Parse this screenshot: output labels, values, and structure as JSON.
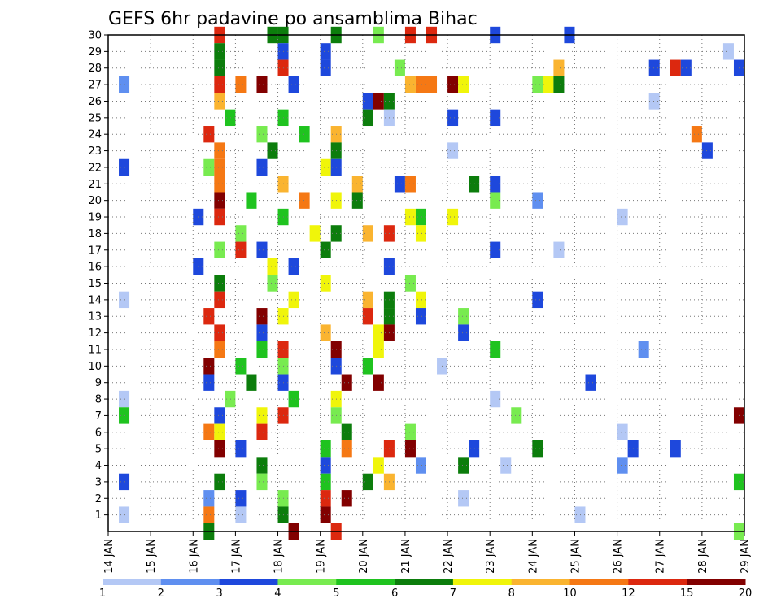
{
  "chart_data": {
    "type": "heatmap",
    "title": "GEFS 6hr padavine po ansamblima Bihac",
    "xlabel": "",
    "ylabel": "",
    "x_tick_labels": [
      "14 JAN",
      "15 JAN",
      "16 JAN",
      "17 JAN",
      "18 JAN",
      "19 JAN",
      "20 JAN",
      "21 JAN",
      "22 JAN",
      "23 JAN",
      "24 JAN",
      "25 JAN",
      "26 JAN",
      "27 JAN",
      "28 JAN",
      "29 JAN"
    ],
    "y_tick_labels": [
      "1",
      "2",
      "3",
      "4",
      "5",
      "6",
      "7",
      "8",
      "9",
      "10",
      "11",
      "12",
      "13",
      "14",
      "15",
      "16",
      "17",
      "18",
      "19",
      "20",
      "21",
      "22",
      "23",
      "24",
      "25",
      "26",
      "27",
      "28",
      "29",
      "30"
    ],
    "xlim": [
      "14 JAN 00Z",
      "29 JAN 00Z"
    ],
    "ylim": [
      0,
      30
    ],
    "time_step_hours": 6,
    "grid": true,
    "colorbar": {
      "labels": [
        "1",
        "2",
        "3",
        "4",
        "5",
        "6",
        "7",
        "8",
        "10",
        "12",
        "15",
        "20"
      ],
      "colors": [
        "#b4c8f5",
        "#5f8ff0",
        "#1e48dc",
        "#78eb50",
        "#1fc31f",
        "#0c7d0c",
        "#f0f50a",
        "#fab430",
        "#f57814",
        "#dc280f",
        "#820000"
      ]
    },
    "legend": "colorbar-bottom",
    "cells": [
      {
        "member": 30,
        "x": "16 JAN 12Z",
        "level": 9
      },
      {
        "member": 30,
        "x": "17 JAN 18Z",
        "level": 5
      },
      {
        "member": 30,
        "x": "18 JAN 00Z",
        "level": 5
      },
      {
        "member": 30,
        "x": "19 JAN 06Z",
        "level": 5
      },
      {
        "member": 30,
        "x": "20 JAN 06Z",
        "level": 3
      },
      {
        "member": 30,
        "x": "21 JAN 00Z",
        "level": 9
      },
      {
        "member": 30,
        "x": "21 JAN 12Z",
        "level": 9
      },
      {
        "member": 30,
        "x": "23 JAN 00Z",
        "level": 2
      },
      {
        "member": 30,
        "x": "24 JAN 18Z",
        "level": 2
      },
      {
        "member": 29,
        "x": "16 JAN 12Z",
        "level": 5
      },
      {
        "member": 29,
        "x": "18 JAN 00Z",
        "level": 2
      },
      {
        "member": 29,
        "x": "19 JAN 00Z",
        "level": 2
      },
      {
        "member": 29,
        "x": "28 JAN 12Z",
        "level": 0
      },
      {
        "member": 28,
        "x": "16 JAN 12Z",
        "level": 5
      },
      {
        "member": 28,
        "x": "18 JAN 00Z",
        "level": 9
      },
      {
        "member": 28,
        "x": "19 JAN 00Z",
        "level": 2
      },
      {
        "member": 28,
        "x": "20 JAN 18Z",
        "level": 3
      },
      {
        "member": 28,
        "x": "24 JAN 12Z",
        "level": 7
      },
      {
        "member": 28,
        "x": "26 JAN 18Z",
        "level": 2
      },
      {
        "member": 28,
        "x": "27 JAN 06Z",
        "level": 9
      },
      {
        "member": 28,
        "x": "27 JAN 12Z",
        "level": 2
      },
      {
        "member": 28,
        "x": "28 JAN 18Z",
        "level": 2
      },
      {
        "member": 27,
        "x": "14 JAN 06Z",
        "level": 1
      },
      {
        "member": 27,
        "x": "16 JAN 12Z",
        "level": 9
      },
      {
        "member": 27,
        "x": "17 JAN 00Z",
        "level": 8
      },
      {
        "member": 27,
        "x": "17 JAN 12Z",
        "level": 10
      },
      {
        "member": 27,
        "x": "18 JAN 06Z",
        "level": 2
      },
      {
        "member": 27,
        "x": "21 JAN 00Z",
        "level": 7
      },
      {
        "member": 27,
        "x": "21 JAN 06Z",
        "level": 8
      },
      {
        "member": 27,
        "x": "21 JAN 12Z",
        "level": 8
      },
      {
        "member": 27,
        "x": "22 JAN 00Z",
        "level": 10
      },
      {
        "member": 27,
        "x": "22 JAN 06Z",
        "level": 6
      },
      {
        "member": 27,
        "x": "24 JAN 00Z",
        "level": 3
      },
      {
        "member": 27,
        "x": "24 JAN 06Z",
        "level": 6
      },
      {
        "member": 27,
        "x": "24 JAN 12Z",
        "level": 5
      },
      {
        "member": 26,
        "x": "16 JAN 12Z",
        "level": 7
      },
      {
        "member": 26,
        "x": "20 JAN 00Z",
        "level": 2
      },
      {
        "member": 26,
        "x": "20 JAN 06Z",
        "level": 10
      },
      {
        "member": 26,
        "x": "20 JAN 12Z",
        "level": 5
      },
      {
        "member": 26,
        "x": "26 JAN 18Z",
        "level": 0
      },
      {
        "member": 25,
        "x": "16 JAN 18Z",
        "level": 4
      },
      {
        "member": 25,
        "x": "18 JAN 00Z",
        "level": 4
      },
      {
        "member": 25,
        "x": "20 JAN 00Z",
        "level": 5
      },
      {
        "member": 25,
        "x": "20 JAN 12Z",
        "level": 0
      },
      {
        "member": 25,
        "x": "22 JAN 00Z",
        "level": 2
      },
      {
        "member": 25,
        "x": "23 JAN 00Z",
        "level": 2
      },
      {
        "member": 24,
        "x": "16 JAN 06Z",
        "level": 9
      },
      {
        "member": 24,
        "x": "17 JAN 12Z",
        "level": 3
      },
      {
        "member": 24,
        "x": "18 JAN 12Z",
        "level": 4
      },
      {
        "member": 24,
        "x": "19 JAN 06Z",
        "level": 7
      },
      {
        "member": 24,
        "x": "27 JAN 18Z",
        "level": 8
      },
      {
        "member": 23,
        "x": "16 JAN 12Z",
        "level": 8
      },
      {
        "member": 23,
        "x": "17 JAN 18Z",
        "level": 5
      },
      {
        "member": 23,
        "x": "19 JAN 06Z",
        "level": 5
      },
      {
        "member": 23,
        "x": "22 JAN 00Z",
        "level": 0
      },
      {
        "member": 23,
        "x": "28 JAN 00Z",
        "level": 2
      },
      {
        "member": 22,
        "x": "14 JAN 06Z",
        "level": 2
      },
      {
        "member": 22,
        "x": "16 JAN 06Z",
        "level": 3
      },
      {
        "member": 22,
        "x": "16 JAN 12Z",
        "level": 8
      },
      {
        "member": 22,
        "x": "17 JAN 12Z",
        "level": 2
      },
      {
        "member": 22,
        "x": "19 JAN 00Z",
        "level": 6
      },
      {
        "member": 22,
        "x": "19 JAN 06Z",
        "level": 2
      },
      {
        "member": 21,
        "x": "16 JAN 12Z",
        "level": 8
      },
      {
        "member": 21,
        "x": "18 JAN 00Z",
        "level": 7
      },
      {
        "member": 21,
        "x": "19 JAN 18Z",
        "level": 7
      },
      {
        "member": 21,
        "x": "20 JAN 18Z",
        "level": 2
      },
      {
        "member": 21,
        "x": "21 JAN 00Z",
        "level": 8
      },
      {
        "member": 21,
        "x": "22 JAN 12Z",
        "level": 5
      },
      {
        "member": 21,
        "x": "23 JAN 00Z",
        "level": 2
      },
      {
        "member": 20,
        "x": "16 JAN 12Z",
        "level": 10
      },
      {
        "member": 20,
        "x": "17 JAN 06Z",
        "level": 4
      },
      {
        "member": 20,
        "x": "18 JAN 12Z",
        "level": 8
      },
      {
        "member": 20,
        "x": "19 JAN 06Z",
        "level": 6
      },
      {
        "member": 20,
        "x": "19 JAN 18Z",
        "level": 5
      },
      {
        "member": 20,
        "x": "23 JAN 00Z",
        "level": 3
      },
      {
        "member": 20,
        "x": "24 JAN 00Z",
        "level": 1
      },
      {
        "member": 19,
        "x": "16 JAN 00Z",
        "level": 2
      },
      {
        "member": 19,
        "x": "16 JAN 12Z",
        "level": 9
      },
      {
        "member": 19,
        "x": "18 JAN 00Z",
        "level": 4
      },
      {
        "member": 19,
        "x": "21 JAN 00Z",
        "level": 6
      },
      {
        "member": 19,
        "x": "21 JAN 06Z",
        "level": 4
      },
      {
        "member": 19,
        "x": "22 JAN 00Z",
        "level": 6
      },
      {
        "member": 19,
        "x": "26 JAN 00Z",
        "level": 0
      },
      {
        "member": 18,
        "x": "17 JAN 00Z",
        "level": 3
      },
      {
        "member": 18,
        "x": "18 JAN 18Z",
        "level": 6
      },
      {
        "member": 18,
        "x": "19 JAN 06Z",
        "level": 5
      },
      {
        "member": 18,
        "x": "20 JAN 00Z",
        "level": 7
      },
      {
        "member": 18,
        "x": "20 JAN 12Z",
        "level": 9
      },
      {
        "member": 18,
        "x": "21 JAN 06Z",
        "level": 6
      },
      {
        "member": 17,
        "x": "16 JAN 12Z",
        "level": 3
      },
      {
        "member": 17,
        "x": "17 JAN 00Z",
        "level": 9
      },
      {
        "member": 17,
        "x": "17 JAN 12Z",
        "level": 2
      },
      {
        "member": 17,
        "x": "19 JAN 00Z",
        "level": 5
      },
      {
        "member": 17,
        "x": "23 JAN 00Z",
        "level": 2
      },
      {
        "member": 17,
        "x": "24 JAN 12Z",
        "level": 0
      },
      {
        "member": 16,
        "x": "16 JAN 00Z",
        "level": 2
      },
      {
        "member": 16,
        "x": "17 JAN 18Z",
        "level": 6
      },
      {
        "member": 16,
        "x": "18 JAN 06Z",
        "level": 2
      },
      {
        "member": 16,
        "x": "20 JAN 12Z",
        "level": 2
      },
      {
        "member": 15,
        "x": "16 JAN 12Z",
        "level": 5
      },
      {
        "member": 15,
        "x": "17 JAN 18Z",
        "level": 3
      },
      {
        "member": 15,
        "x": "19 JAN 00Z",
        "level": 6
      },
      {
        "member": 15,
        "x": "21 JAN 00Z",
        "level": 3
      },
      {
        "member": 14,
        "x": "14 JAN 06Z",
        "level": 0
      },
      {
        "member": 14,
        "x": "16 JAN 12Z",
        "level": 9
      },
      {
        "member": 14,
        "x": "18 JAN 06Z",
        "level": 6
      },
      {
        "member": 14,
        "x": "20 JAN 00Z",
        "level": 7
      },
      {
        "member": 14,
        "x": "20 JAN 12Z",
        "level": 5
      },
      {
        "member": 14,
        "x": "21 JAN 06Z",
        "level": 6
      },
      {
        "member": 14,
        "x": "24 JAN 00Z",
        "level": 2
      },
      {
        "member": 13,
        "x": "16 JAN 06Z",
        "level": 9
      },
      {
        "member": 13,
        "x": "17 JAN 12Z",
        "level": 10
      },
      {
        "member": 13,
        "x": "18 JAN 00Z",
        "level": 6
      },
      {
        "member": 13,
        "x": "20 JAN 00Z",
        "level": 9
      },
      {
        "member": 13,
        "x": "20 JAN 12Z",
        "level": 5
      },
      {
        "member": 13,
        "x": "21 JAN 06Z",
        "level": 2
      },
      {
        "member": 13,
        "x": "22 JAN 06Z",
        "level": 3
      },
      {
        "member": 12,
        "x": "16 JAN 12Z",
        "level": 9
      },
      {
        "member": 12,
        "x": "17 JAN 12Z",
        "level": 2
      },
      {
        "member": 12,
        "x": "19 JAN 00Z",
        "level": 7
      },
      {
        "member": 12,
        "x": "20 JAN 06Z",
        "level": 6
      },
      {
        "member": 12,
        "x": "20 JAN 12Z",
        "level": 10
      },
      {
        "member": 12,
        "x": "22 JAN 06Z",
        "level": 2
      },
      {
        "member": 11,
        "x": "16 JAN 12Z",
        "level": 8
      },
      {
        "member": 11,
        "x": "17 JAN 12Z",
        "level": 4
      },
      {
        "member": 11,
        "x": "18 JAN 00Z",
        "level": 9
      },
      {
        "member": 11,
        "x": "19 JAN 06Z",
        "level": 10
      },
      {
        "member": 11,
        "x": "20 JAN 06Z",
        "level": 6
      },
      {
        "member": 11,
        "x": "23 JAN 00Z",
        "level": 4
      },
      {
        "member": 11,
        "x": "26 JAN 12Z",
        "level": 1
      },
      {
        "member": 10,
        "x": "16 JAN 06Z",
        "level": 10
      },
      {
        "member": 10,
        "x": "17 JAN 00Z",
        "level": 4
      },
      {
        "member": 10,
        "x": "18 JAN 00Z",
        "level": 3
      },
      {
        "member": 10,
        "x": "19 JAN 06Z",
        "level": 2
      },
      {
        "member": 10,
        "x": "20 JAN 00Z",
        "level": 4
      },
      {
        "member": 10,
        "x": "21 JAN 18Z",
        "level": 0
      },
      {
        "member": 9,
        "x": "16 JAN 06Z",
        "level": 2
      },
      {
        "member": 9,
        "x": "17 JAN 06Z",
        "level": 5
      },
      {
        "member": 9,
        "x": "18 JAN 00Z",
        "level": 2
      },
      {
        "member": 9,
        "x": "19 JAN 12Z",
        "level": 10
      },
      {
        "member": 9,
        "x": "20 JAN 06Z",
        "level": 10
      },
      {
        "member": 9,
        "x": "25 JAN 06Z",
        "level": 2
      },
      {
        "member": 8,
        "x": "14 JAN 06Z",
        "level": 0
      },
      {
        "member": 8,
        "x": "16 JAN 18Z",
        "level": 3
      },
      {
        "member": 8,
        "x": "18 JAN 06Z",
        "level": 4
      },
      {
        "member": 8,
        "x": "19 JAN 06Z",
        "level": 6
      },
      {
        "member": 8,
        "x": "23 JAN 00Z",
        "level": 0
      },
      {
        "member": 7,
        "x": "14 JAN 06Z",
        "level": 4
      },
      {
        "member": 7,
        "x": "16 JAN 12Z",
        "level": 2
      },
      {
        "member": 7,
        "x": "17 JAN 12Z",
        "level": 6
      },
      {
        "member": 7,
        "x": "18 JAN 00Z",
        "level": 9
      },
      {
        "member": 7,
        "x": "19 JAN 06Z",
        "level": 3
      },
      {
        "member": 7,
        "x": "23 JAN 12Z",
        "level": 3
      },
      {
        "member": 7,
        "x": "28 JAN 18Z",
        "level": 10
      },
      {
        "member": 6,
        "x": "16 JAN 06Z",
        "level": 8
      },
      {
        "member": 6,
        "x": "16 JAN 12Z",
        "level": 6
      },
      {
        "member": 6,
        "x": "17 JAN 12Z",
        "level": 9
      },
      {
        "member": 6,
        "x": "19 JAN 12Z",
        "level": 5
      },
      {
        "member": 6,
        "x": "21 JAN 00Z",
        "level": 3
      },
      {
        "member": 6,
        "x": "26 JAN 00Z",
        "level": 0
      },
      {
        "member": 5,
        "x": "16 JAN 12Z",
        "level": 10
      },
      {
        "member": 5,
        "x": "17 JAN 00Z",
        "level": 2
      },
      {
        "member": 5,
        "x": "19 JAN 00Z",
        "level": 4
      },
      {
        "member": 5,
        "x": "19 JAN 12Z",
        "level": 8
      },
      {
        "member": 5,
        "x": "20 JAN 12Z",
        "level": 9
      },
      {
        "member": 5,
        "x": "21 JAN 00Z",
        "level": 10
      },
      {
        "member": 5,
        "x": "22 JAN 12Z",
        "level": 2
      },
      {
        "member": 5,
        "x": "24 JAN 00Z",
        "level": 5
      },
      {
        "member": 5,
        "x": "26 JAN 06Z",
        "level": 2
      },
      {
        "member": 5,
        "x": "27 JAN 06Z",
        "level": 2
      },
      {
        "member": 4,
        "x": "17 JAN 12Z",
        "level": 5
      },
      {
        "member": 4,
        "x": "19 JAN 00Z",
        "level": 2
      },
      {
        "member": 4,
        "x": "20 JAN 06Z",
        "level": 6
      },
      {
        "member": 4,
        "x": "21 JAN 06Z",
        "level": 1
      },
      {
        "member": 4,
        "x": "22 JAN 06Z",
        "level": 5
      },
      {
        "member": 4,
        "x": "23 JAN 06Z",
        "level": 0
      },
      {
        "member": 4,
        "x": "26 JAN 00Z",
        "level": 1
      },
      {
        "member": 3,
        "x": "14 JAN 06Z",
        "level": 2
      },
      {
        "member": 3,
        "x": "16 JAN 12Z",
        "level": 5
      },
      {
        "member": 3,
        "x": "17 JAN 12Z",
        "level": 3
      },
      {
        "member": 3,
        "x": "19 JAN 00Z",
        "level": 4
      },
      {
        "member": 3,
        "x": "20 JAN 00Z",
        "level": 5
      },
      {
        "member": 3,
        "x": "20 JAN 12Z",
        "level": 7
      },
      {
        "member": 3,
        "x": "28 JAN 18Z",
        "level": 4
      },
      {
        "member": 2,
        "x": "16 JAN 06Z",
        "level": 1
      },
      {
        "member": 2,
        "x": "17 JAN 00Z",
        "level": 2
      },
      {
        "member": 2,
        "x": "18 JAN 00Z",
        "level": 3
      },
      {
        "member": 2,
        "x": "19 JAN 00Z",
        "level": 9
      },
      {
        "member": 2,
        "x": "19 JAN 12Z",
        "level": 10
      },
      {
        "member": 2,
        "x": "22 JAN 06Z",
        "level": 0
      },
      {
        "member": 1,
        "x": "14 JAN 06Z",
        "level": 0
      },
      {
        "member": 1,
        "x": "16 JAN 06Z",
        "level": 8
      },
      {
        "member": 1,
        "x": "17 JAN 00Z",
        "level": 0
      },
      {
        "member": 1,
        "x": "18 JAN 00Z",
        "level": 5
      },
      {
        "member": 1,
        "x": "19 JAN 00Z",
        "level": 10
      },
      {
        "member": 1,
        "x": "25 JAN 00Z",
        "level": 0
      },
      {
        "member": 0,
        "x": "16 JAN 06Z",
        "level": 5
      },
      {
        "member": 0,
        "x": "18 JAN 06Z",
        "level": 10
      },
      {
        "member": 0,
        "x": "19 JAN 06Z",
        "level": 9
      },
      {
        "member": 0,
        "x": "28 JAN 18Z",
        "level": 3
      }
    ]
  }
}
